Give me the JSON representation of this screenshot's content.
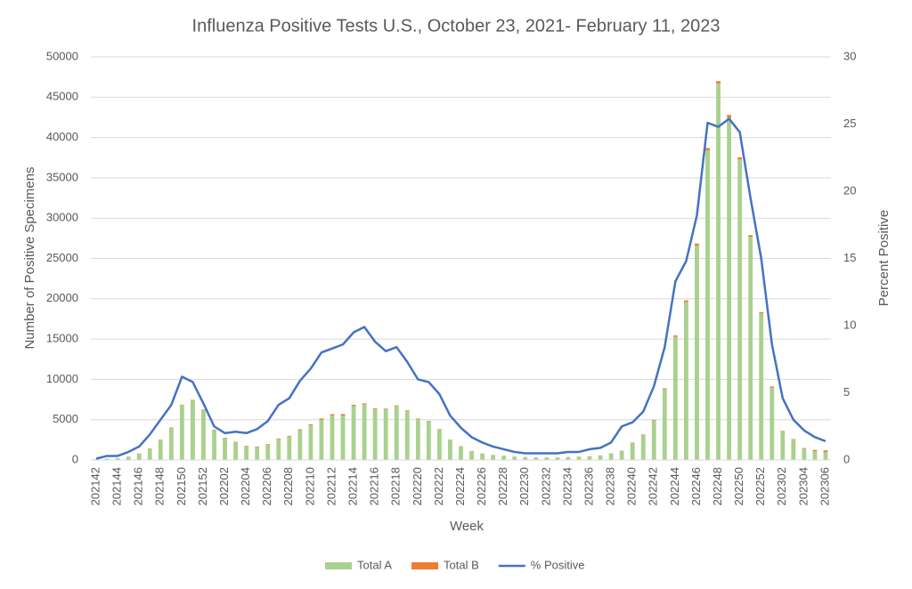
{
  "chart_data": {
    "type": "bar",
    "stacked": true,
    "title": "Influenza Positive Tests U.S., October 23, 2021- February 11, 2023",
    "x_label": "Week",
    "y_label": "Number of Positive Specimens",
    "y2_label": "Percent Positive",
    "categories": [
      "202142",
      null,
      "202144",
      null,
      "202146",
      null,
      "202148",
      null,
      "202150",
      null,
      "202152",
      null,
      "202202",
      null,
      "202204",
      null,
      "202206",
      null,
      "202208",
      null,
      "202210",
      null,
      "202212",
      null,
      "202214",
      null,
      "202216",
      null,
      "202218",
      null,
      "202220",
      null,
      "202222",
      null,
      "202224",
      null,
      "202226",
      null,
      "202228",
      null,
      "202230",
      null,
      "202232",
      null,
      "202234",
      null,
      "202236",
      null,
      "202238",
      null,
      "202240",
      null,
      "202242",
      null,
      "202244",
      null,
      "202246",
      null,
      "202248",
      null,
      "202250",
      null,
      "202252",
      null,
      "202302",
      null,
      "202304",
      null,
      "202306"
    ],
    "series": [
      {
        "name": "Total A",
        "color": "#a9d18e",
        "values": [
          100,
          150,
          200,
          400,
          800,
          1400,
          2500,
          4000,
          6800,
          7400,
          6200,
          3700,
          2700,
          2200,
          1700,
          1600,
          1900,
          2600,
          2900,
          3700,
          4300,
          5000,
          5500,
          5500,
          6700,
          6900,
          6300,
          6300,
          6700,
          6100,
          5100,
          4800,
          3800,
          2500,
          1700,
          1100,
          800,
          600,
          500,
          400,
          350,
          300,
          300,
          300,
          350,
          400,
          450,
          550,
          800,
          1100,
          2100,
          3100,
          4900,
          8800,
          15300,
          19600,
          26600,
          38400,
          46700,
          42500,
          37300,
          27700,
          18200,
          9000,
          3500,
          2500,
          1400,
          1100,
          1000
        ]
      },
      {
        "name": "Total B",
        "color": "#ed7d31",
        "values": [
          10,
          10,
          20,
          20,
          30,
          30,
          40,
          50,
          60,
          60,
          60,
          50,
          50,
          50,
          50,
          60,
          70,
          80,
          90,
          100,
          120,
          150,
          180,
          200,
          150,
          120,
          100,
          80,
          80,
          70,
          60,
          50,
          40,
          30,
          20,
          20,
          20,
          20,
          20,
          20,
          20,
          20,
          20,
          20,
          20,
          20,
          20,
          20,
          30,
          40,
          50,
          60,
          80,
          100,
          150,
          200,
          250,
          300,
          300,
          300,
          250,
          200,
          150,
          120,
          100,
          90,
          80,
          150,
          200
        ]
      },
      {
        "name": "% Positive",
        "type": "line",
        "axis": "y2",
        "color": "#4472c4",
        "values": [
          0.1,
          0.3,
          0.3,
          0.6,
          1.0,
          1.9,
          3.0,
          4.1,
          6.2,
          5.8,
          4.2,
          2.5,
          2.0,
          2.1,
          2.0,
          2.3,
          2.9,
          4.1,
          4.6,
          5.9,
          6.8,
          8.0,
          8.3,
          8.6,
          9.5,
          9.9,
          8.8,
          8.1,
          8.4,
          7.3,
          6.0,
          5.8,
          4.9,
          3.3,
          2.4,
          1.7,
          1.3,
          1.0,
          0.8,
          0.6,
          0.5,
          0.5,
          0.5,
          0.5,
          0.6,
          0.6,
          0.8,
          0.9,
          1.3,
          2.5,
          2.8,
          3.6,
          5.5,
          8.4,
          13.3,
          14.8,
          18.2,
          25.1,
          24.8,
          25.4,
          24.4,
          19.5,
          15.0,
          8.6,
          4.6,
          3.0,
          2.2,
          1.7,
          1.4
        ]
      }
    ],
    "ylim": [
      0,
      50000
    ],
    "yticks": [
      0,
      5000,
      10000,
      15000,
      20000,
      25000,
      30000,
      35000,
      40000,
      45000,
      50000
    ],
    "y2lim": [
      0,
      30
    ],
    "y2ticks": [
      0,
      5,
      10,
      15,
      20,
      25,
      30
    ],
    "grid": true,
    "legend": "bottom"
  }
}
